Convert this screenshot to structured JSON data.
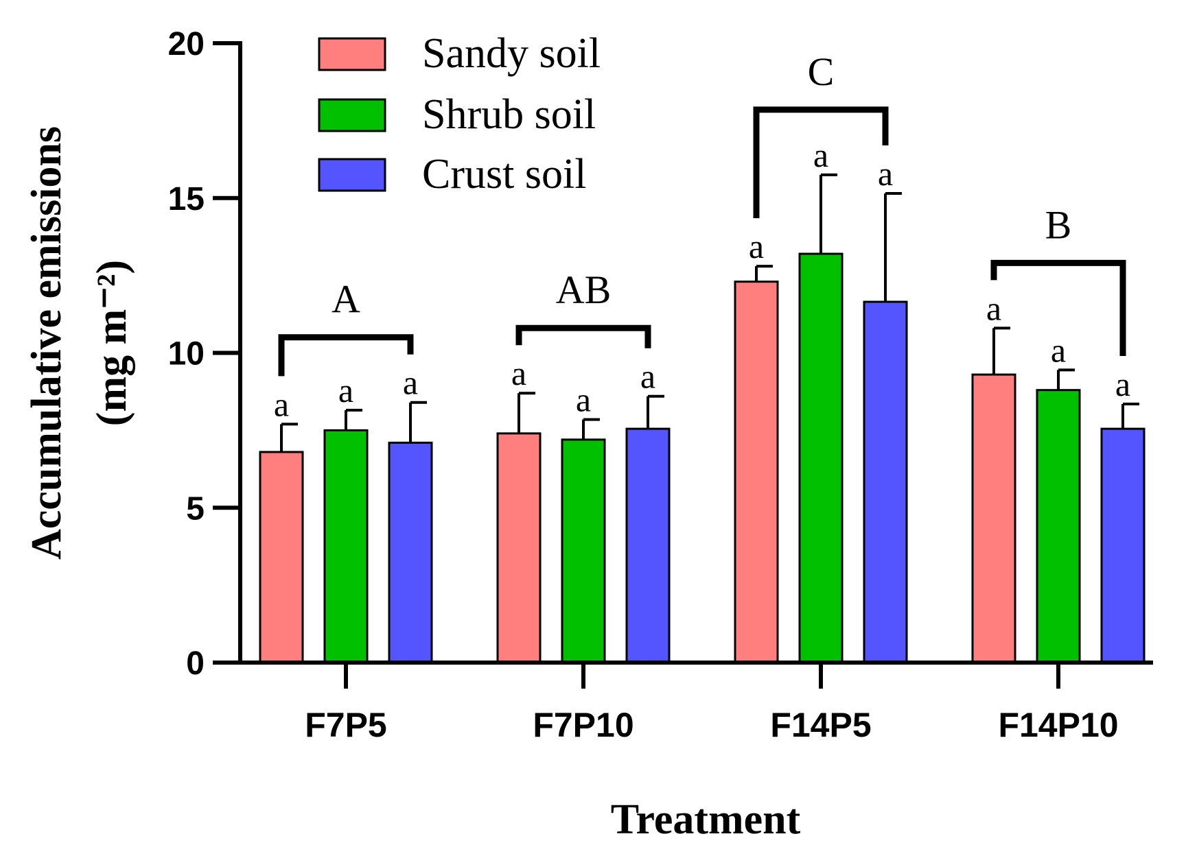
{
  "chart_data": {
    "type": "bar",
    "title": "",
    "xlabel": "Treatment",
    "ylabel_line1": "Accumulative emissions",
    "ylabel_line2": "(mg m⁻²)",
    "ylim": [
      0,
      20
    ],
    "yticks": [
      "0",
      "5",
      "10",
      "15",
      "20"
    ],
    "categories": [
      "F7P5",
      "F7P10",
      "F14P5",
      "F14P10"
    ],
    "legend_position": "top-left",
    "series": [
      {
        "name": "Sandy soil",
        "color": "#FF7F7F",
        "values": [
          6.8,
          7.4,
          12.3,
          9.3
        ],
        "errors": [
          0.9,
          1.3,
          0.5,
          1.5
        ],
        "letters": [
          "a",
          "a",
          "a",
          "a"
        ]
      },
      {
        "name": "Shrub soil",
        "color": "#00C000",
        "values": [
          7.5,
          7.2,
          13.2,
          8.8
        ],
        "errors": [
          0.65,
          0.65,
          2.55,
          0.65
        ],
        "letters": [
          "a",
          "a",
          "a",
          "a"
        ]
      },
      {
        "name": "Crust soil",
        "color": "#5555FF",
        "values": [
          7.1,
          7.55,
          11.65,
          7.55
        ],
        "errors": [
          1.3,
          1.05,
          3.5,
          0.8
        ],
        "letters": [
          "a",
          "a",
          "a",
          "a"
        ]
      }
    ],
    "group_letters": [
      "A",
      "AB",
      "C",
      "B"
    ]
  }
}
